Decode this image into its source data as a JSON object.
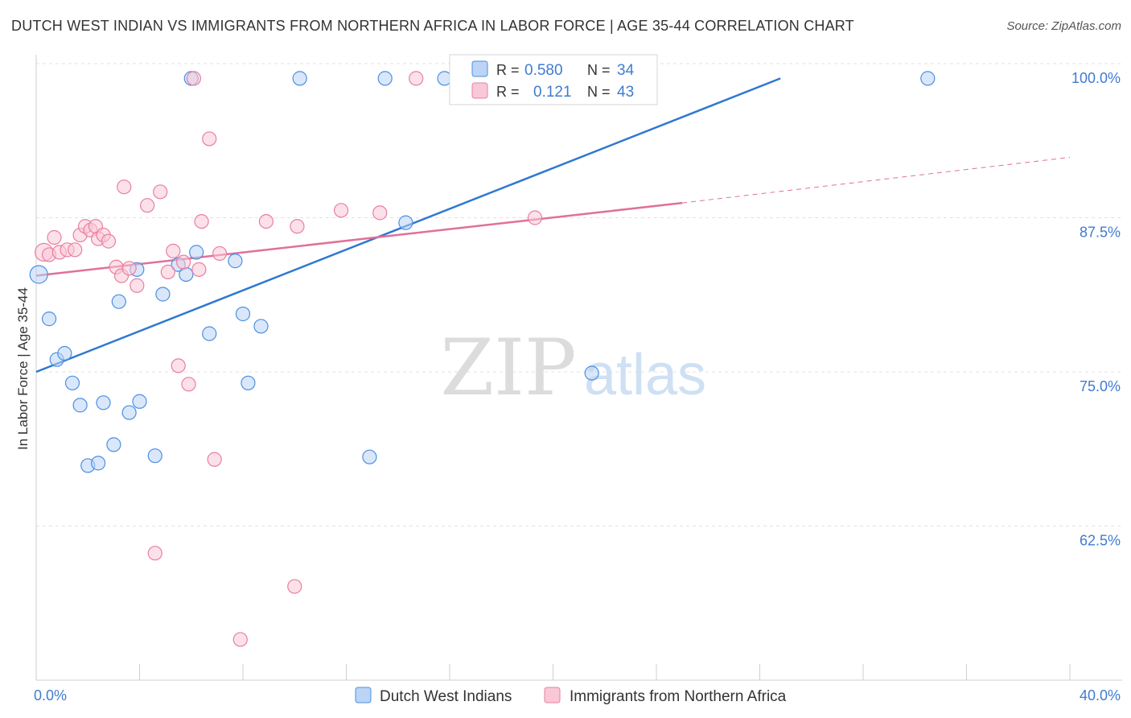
{
  "header": {
    "title": "DUTCH WEST INDIAN VS IMMIGRANTS FROM NORTHERN AFRICA IN LABOR FORCE | AGE 35-44 CORRELATION CHART",
    "source": "Source: ZipAtlas.com"
  },
  "watermark": {
    "zip": "ZIP",
    "atlas": "atlas"
  },
  "colors": {
    "blue": "#4a90e2",
    "blue_fill": "#bcd4f5",
    "blue_line": "#2f78d0",
    "pink": "#e87fa3",
    "pink_fill": "#f9c8d6",
    "pink_line": "#e0709a",
    "axis_label": "#3f7cd0"
  },
  "chart_data": {
    "type": "scatter",
    "title": "DUTCH WEST INDIAN VS IMMIGRANTS FROM NORTHERN AFRICA IN LABOR FORCE | AGE 35-44 CORRELATION CHART",
    "xlabel": "",
    "ylabel": "In Labor Force | Age 35-44",
    "xlim": [
      0,
      40
    ],
    "ylim": [
      50,
      100
    ],
    "x_tick_labels": [
      "0.0%",
      "40.0%"
    ],
    "y_ticks": [
      62.5,
      75.0,
      87.5,
      100.0
    ],
    "y_tick_labels": [
      "62.5%",
      "75.0%",
      "87.5%",
      "100.0%"
    ],
    "grid": true,
    "legend": {
      "position": "top-center",
      "entries": [
        {
          "r_label": "R =",
          "r_value": "0.580",
          "n_label": "N =",
          "n_value": "34"
        },
        {
          "r_label": "R =",
          "r_value": "0.121",
          "n_label": "N =",
          "n_value": "43"
        }
      ]
    },
    "bottom_legend": [
      "Dutch West Indians",
      "Immigrants from Northern Africa"
    ],
    "series": [
      {
        "name": "Dutch West Indians",
        "color": "blue",
        "points": [
          [
            0.1,
            82.9
          ],
          [
            0.5,
            79.3
          ],
          [
            0.8,
            76.0
          ],
          [
            1.1,
            76.5
          ],
          [
            1.4,
            74.1
          ],
          [
            1.7,
            72.3
          ],
          [
            2.0,
            67.4
          ],
          [
            2.4,
            67.6
          ],
          [
            2.6,
            72.5
          ],
          [
            3.0,
            69.1
          ],
          [
            3.2,
            80.7
          ],
          [
            3.6,
            71.7
          ],
          [
            3.9,
            83.3
          ],
          [
            4.0,
            72.6
          ],
          [
            4.6,
            68.2
          ],
          [
            4.9,
            81.3
          ],
          [
            5.5,
            83.7
          ],
          [
            5.8,
            82.9
          ],
          [
            6.0,
            98.8
          ],
          [
            6.2,
            84.7
          ],
          [
            6.7,
            78.1
          ],
          [
            7.7,
            84.0
          ],
          [
            8.0,
            79.7
          ],
          [
            8.2,
            74.1
          ],
          [
            8.7,
            78.7
          ],
          [
            10.2,
            98.8
          ],
          [
            12.9,
            68.1
          ],
          [
            13.5,
            98.8
          ],
          [
            14.3,
            87.1
          ],
          [
            15.8,
            98.8
          ],
          [
            16.5,
            98.8
          ],
          [
            21.5,
            74.9
          ],
          [
            34.5,
            98.8
          ]
        ],
        "trend": {
          "x": [
            0,
            28.8
          ],
          "y": [
            75.0,
            98.8
          ]
        }
      },
      {
        "name": "Immigrants from Northern Africa",
        "color": "pink",
        "points": [
          [
            0.3,
            84.7
          ],
          [
            0.5,
            84.5
          ],
          [
            0.7,
            85.9
          ],
          [
            0.9,
            84.7
          ],
          [
            1.2,
            84.9
          ],
          [
            1.5,
            84.9
          ],
          [
            1.7,
            86.1
          ],
          [
            1.9,
            86.8
          ],
          [
            2.1,
            86.5
          ],
          [
            2.3,
            86.8
          ],
          [
            2.4,
            85.8
          ],
          [
            2.6,
            86.1
          ],
          [
            2.8,
            85.6
          ],
          [
            3.1,
            83.5
          ],
          [
            3.3,
            82.8
          ],
          [
            3.4,
            90.0
          ],
          [
            3.6,
            83.4
          ],
          [
            3.9,
            82.0
          ],
          [
            4.3,
            88.5
          ],
          [
            4.6,
            60.3
          ],
          [
            4.8,
            89.6
          ],
          [
            5.1,
            83.1
          ],
          [
            5.3,
            84.8
          ],
          [
            5.5,
            75.5
          ],
          [
            5.7,
            83.9
          ],
          [
            5.9,
            74.0
          ],
          [
            6.1,
            98.8
          ],
          [
            6.3,
            83.3
          ],
          [
            6.4,
            87.2
          ],
          [
            6.7,
            93.9
          ],
          [
            6.9,
            67.9
          ],
          [
            7.1,
            84.6
          ],
          [
            7.9,
            53.3
          ],
          [
            8.9,
            87.2
          ],
          [
            10.0,
            57.6
          ],
          [
            10.1,
            86.8
          ],
          [
            11.8,
            88.1
          ],
          [
            13.3,
            87.9
          ],
          [
            14.7,
            98.8
          ],
          [
            19.3,
            87.5
          ]
        ],
        "trend": {
          "x": [
            0,
            25.0
          ],
          "y": [
            82.8,
            88.7
          ]
        },
        "trend_dashed": {
          "x": [
            25.0,
            40.0
          ],
          "y": [
            88.7,
            92.4
          ]
        }
      }
    ]
  }
}
